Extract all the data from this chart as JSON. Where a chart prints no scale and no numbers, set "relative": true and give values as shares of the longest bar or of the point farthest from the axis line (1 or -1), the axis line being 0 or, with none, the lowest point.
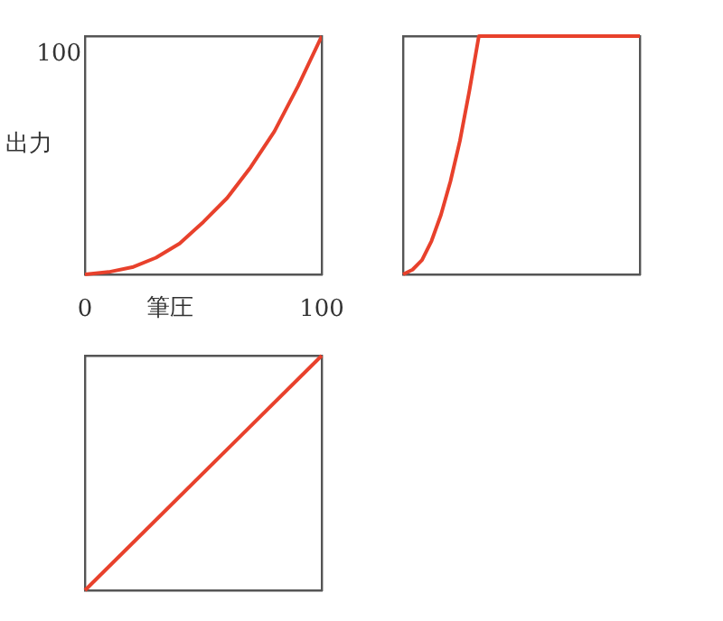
{
  "chart_data": [
    {
      "type": "line",
      "xlabel": "筆圧",
      "ylabel": "出力",
      "relative": true,
      "annotations": [
        "100"
      ],
      "x": [
        0,
        10,
        20,
        30,
        40,
        50,
        60,
        70,
        80,
        90,
        100
      ],
      "series": [
        {
          "color": "#e8412c",
          "values": [
            0,
            0.01,
            0.03,
            0.07,
            0.13,
            0.22,
            0.32,
            0.45,
            0.6,
            0.79,
            1
          ]
        }
      ],
      "xlim": [
        0,
        100
      ],
      "xticks": [
        0,
        100
      ]
    },
    {
      "type": "line",
      "relative": true,
      "categories": [
        null,
        null,
        null,
        null,
        null,
        null,
        null,
        null,
        null,
        null,
        null,
        null,
        null,
        null,
        null,
        null,
        null,
        null,
        null,
        null,
        null,
        null,
        null,
        null,
        null,
        null
      ],
      "series": [
        {
          "color": "#e8412c",
          "values": [
            0,
            0.02,
            0.06,
            0.14,
            0.25,
            0.39,
            0.56,
            0.77,
            1,
            1,
            1,
            1,
            1,
            1,
            1,
            1,
            1,
            1,
            1,
            1,
            1,
            1,
            1,
            1,
            1,
            1
          ]
        }
      ]
    },
    {
      "type": "line",
      "relative": true,
      "categories": [
        null,
        null
      ],
      "series": [
        {
          "color": "#e8412c",
          "values": [
            0,
            1
          ]
        }
      ]
    }
  ]
}
